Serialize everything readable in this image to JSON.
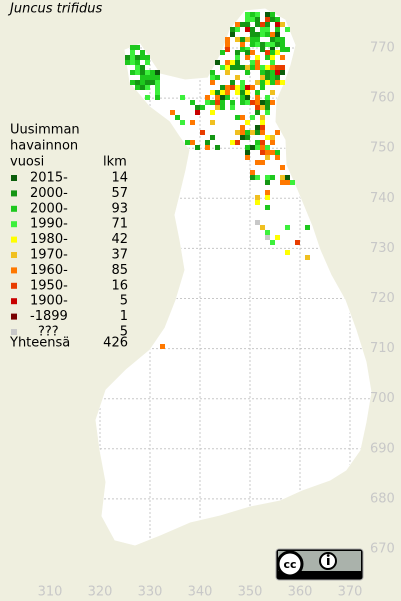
{
  "title": "Juncus trifidus",
  "legend": {
    "heading": [
      "Uusimman",
      "havainnon",
      "vuosi"
    ],
    "count_heading": "lkm",
    "rows": [
      {
        "label": "2015-",
        "count": 14,
        "color": "#0b5d0b"
      },
      {
        "label": "2000-",
        "count": 57,
        "color": "#149614"
      },
      {
        "label": "2000-",
        "count": 93,
        "color": "#1ec81e"
      },
      {
        "label": "1990-",
        "count": 71,
        "color": "#3cf03c"
      },
      {
        "label": "1980-",
        "count": 42,
        "color": "#ffff00"
      },
      {
        "label": "1970-",
        "count": 37,
        "color": "#f0c020"
      },
      {
        "label": "1960-",
        "count": 85,
        "color": "#ff7800"
      },
      {
        "label": "1950-",
        "count": 16,
        "color": "#e83c00"
      },
      {
        "label": "1900-",
        "count": 5,
        "color": "#c80000"
      },
      {
        "label": "-1899",
        "count": 1,
        "color": "#780000"
      },
      {
        "label": "???",
        "count": 5,
        "color": "#c8c8c8"
      }
    ],
    "total_label": "Yhteensä",
    "total": 426
  },
  "y_ticks": [
    770,
    760,
    750,
    740,
    730,
    720,
    710,
    700,
    690,
    680,
    670
  ],
  "x_ticks": [
    310,
    320,
    330,
    340,
    350,
    360,
    370
  ]
}
